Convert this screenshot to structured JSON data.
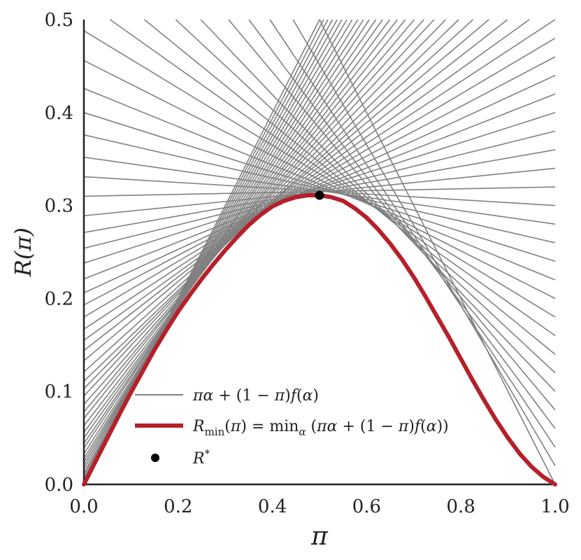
{
  "chart_data": {
    "type": "line",
    "xlabel": "π",
    "ylabel": "R(π)",
    "xlim": [
      0.0,
      1.0
    ],
    "ylim": [
      0.0,
      0.5
    ],
    "x_ticks": [
      "0.0",
      "0.2",
      "0.4",
      "0.6",
      "0.8",
      "1.0"
    ],
    "y_ticks": [
      "0.0",
      "0.1",
      "0.2",
      "0.3",
      "0.4",
      "0.5"
    ],
    "grid": false,
    "legend_position": "lower-center",
    "series": [
      {
        "name": "πα + (1 − π)f(α)",
        "kind": "family of tangent lines",
        "alpha": [
          0.0,
          0.02,
          0.04,
          0.06,
          0.08,
          0.1,
          0.12,
          0.14,
          0.16,
          0.18,
          0.2,
          0.22,
          0.24,
          0.26,
          0.28,
          0.3,
          0.32,
          0.34,
          0.36,
          0.38,
          0.4,
          0.42,
          0.44,
          0.46,
          0.48,
          0.5,
          0.52,
          0.54,
          0.56,
          0.58,
          0.6,
          0.62,
          0.64,
          0.66,
          0.68,
          0.7,
          0.72,
          0.74,
          0.76,
          0.78,
          0.8,
          0.82,
          0.84,
          0.86,
          0.88,
          0.9,
          0.92,
          0.94,
          0.96,
          0.98,
          1.0
        ],
        "f_alpha": [
          1.0,
          0.883,
          0.8,
          0.737,
          0.686,
          0.632,
          0.592,
          0.553,
          0.52,
          0.488,
          0.456,
          0.426,
          0.4,
          0.376,
          0.352,
          0.331,
          0.31,
          0.289,
          0.271,
          0.254,
          0.238,
          0.221,
          0.206,
          0.193,
          0.18,
          0.167,
          0.155,
          0.144,
          0.133,
          0.121,
          0.111,
          0.103,
          0.095,
          0.086,
          0.078,
          0.071,
          0.063,
          0.056,
          0.05,
          0.044,
          0.039,
          0.033,
          0.028,
          0.024,
          0.02,
          0.016,
          0.012,
          0.009,
          0.006,
          0.003,
          0.0
        ],
        "color": "#808080"
      },
      {
        "name": "R_min(π) = min_α (πα + (1 − π)f(α))",
        "x": [
          0.0,
          0.025,
          0.05,
          0.075,
          0.1,
          0.125,
          0.15,
          0.175,
          0.2,
          0.225,
          0.25,
          0.275,
          0.3,
          0.325,
          0.35,
          0.375,
          0.4,
          0.425,
          0.45,
          0.475,
          0.5,
          0.525,
          0.55,
          0.575,
          0.6,
          0.625,
          0.65,
          0.675,
          0.7,
          0.725,
          0.75,
          0.775,
          0.8,
          0.825,
          0.85,
          0.875,
          0.9,
          0.925,
          0.95,
          0.975,
          1.0
        ],
        "y": [
          0.0,
          0.025,
          0.05,
          0.075,
          0.099,
          0.122,
          0.145,
          0.166,
          0.186,
          0.204,
          0.221,
          0.237,
          0.252,
          0.266,
          0.279,
          0.29,
          0.299,
          0.305,
          0.309,
          0.311,
          0.311,
          0.309,
          0.305,
          0.297,
          0.287,
          0.274,
          0.259,
          0.242,
          0.223,
          0.202,
          0.18,
          0.158,
          0.135,
          0.112,
          0.09,
          0.069,
          0.05,
          0.033,
          0.019,
          0.008,
          0.0
        ],
        "color": "#b5202a"
      },
      {
        "name": "R*",
        "type": "scatter",
        "x": [
          0.5
        ],
        "y": [
          0.311
        ],
        "color": "#000000"
      }
    ],
    "legend_entries": {
      "lines": {
        "pi": "π",
        "alpha": "α",
        "plus": " + ",
        "open": "(1 − ",
        "close": ")",
        "f": "f",
        "lp": "(",
        "rp": ")"
      },
      "rmin": {
        "R": "R",
        "sub": "min",
        "eq": " = min",
        "alpha_sub": "α",
        "rest_open": " (",
        "plus": " + ",
        "mid": "(1 − ",
        "close": ")",
        "end": "))"
      },
      "rstar": {
        "R": "R",
        "sup": "*"
      }
    }
  }
}
